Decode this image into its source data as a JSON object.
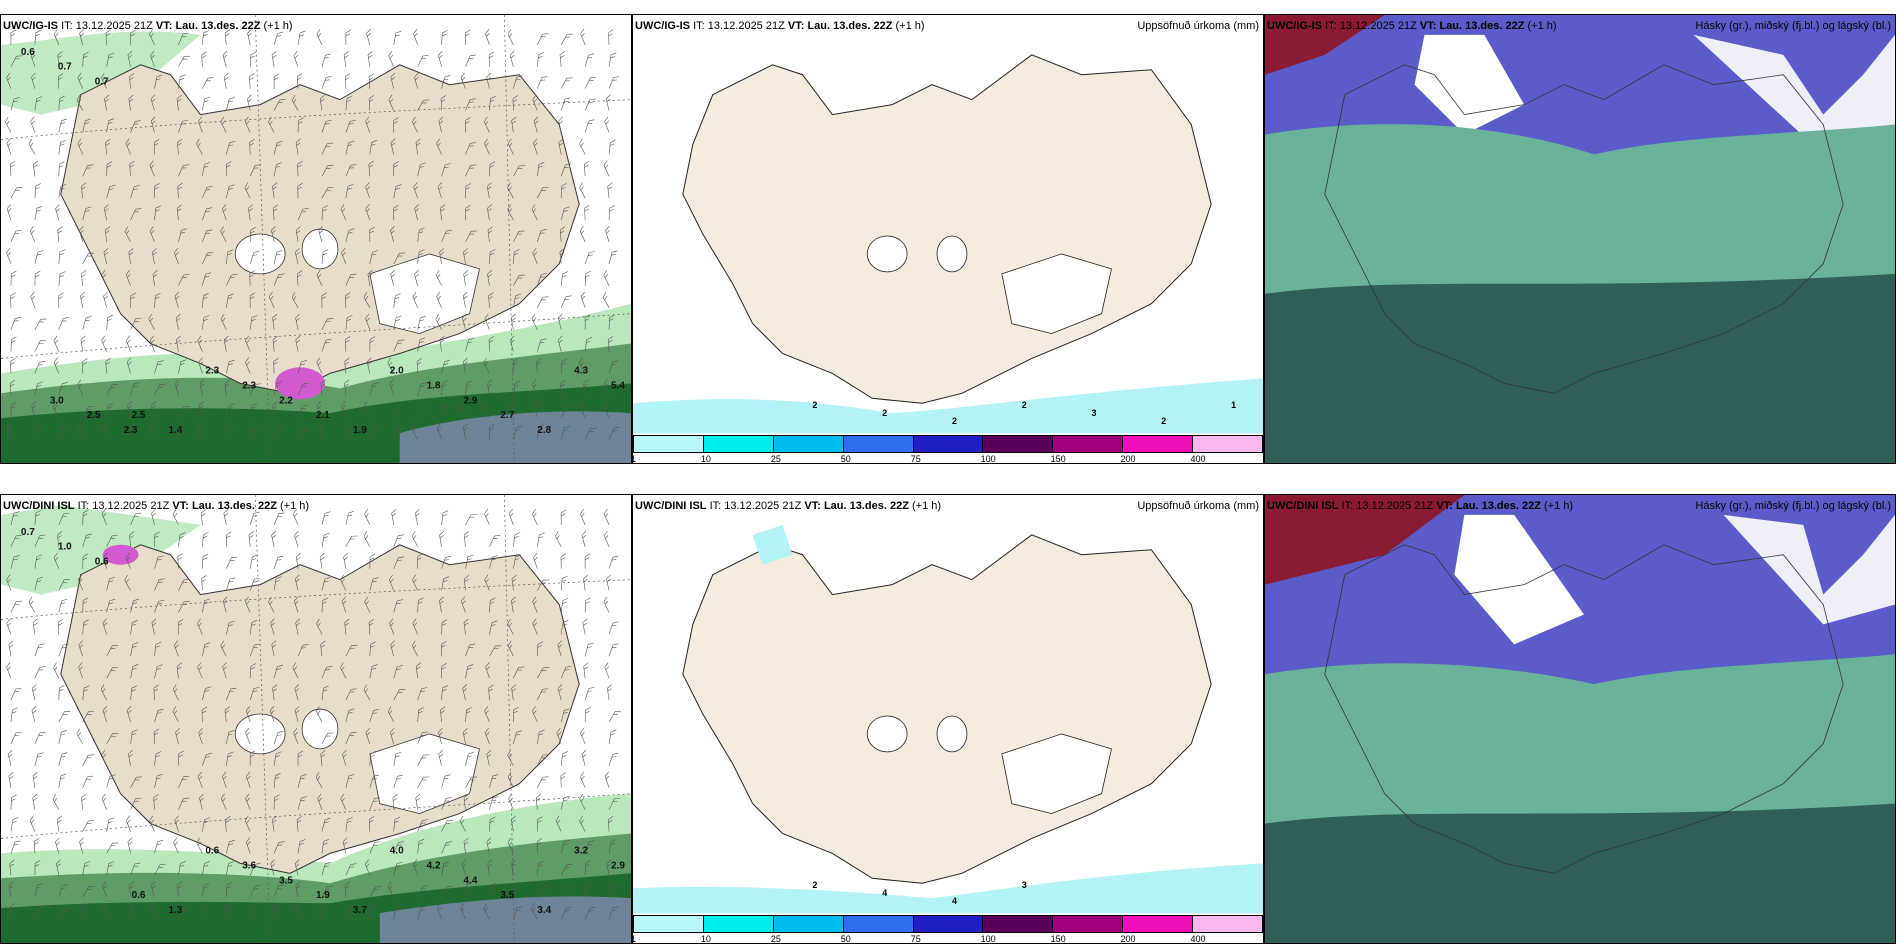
{
  "rows": [
    {
      "model": "UWC/IG-IS",
      "it_label": "IT:",
      "it_value": "13.12.2025 21Z",
      "vt_label": "VT:",
      "vt_value": "Lau. 13.des. 22Z",
      "lead": "(+1 h)",
      "precip_title": "Uppsöfnuð úrkoma (mm)",
      "cloud_title": "Hásky (gr.), miðský (fj.bl.) og lágský (bl.)",
      "wind_labels": [
        "0.6",
        "0.7",
        "0.7",
        "2.5",
        "1.4",
        "2.3",
        "2.3",
        "2.2",
        "2.1",
        "1.9",
        "2.0",
        "1.8",
        "2.9",
        "2.7",
        "2.8",
        "4.3",
        "5.4",
        "3.0",
        "2.5",
        "2.3"
      ],
      "precip_labels": [
        "2",
        "2",
        "2",
        "2",
        "3",
        "2",
        "1"
      ]
    },
    {
      "model": "UWC/DINI ISL",
      "it_label": "IT:",
      "it_value": "13.12.2025 21Z",
      "vt_label": "VT:",
      "vt_value": "Lau. 13.des. 22Z",
      "lead": "(+1 h)",
      "precip_title": "Uppsöfnuð úrkoma (mm)",
      "cloud_title": "Hásky (gr.), miðský (fj.bl.) og lágský (bl.)",
      "wind_labels": [
        "0.7",
        "1.0",
        "0.6",
        "0.6",
        "1.3",
        "0.6",
        "3.6",
        "3.5",
        "1.9",
        "3.7",
        "4.0",
        "4.2",
        "4.4",
        "3.5",
        "3.4",
        "3.2",
        "2.9"
      ],
      "precip_labels": [
        "2",
        "4",
        "4",
        "3"
      ]
    }
  ],
  "colorbar": {
    "colors": [
      "#b7f7f7",
      "#00ecec",
      "#00bcef",
      "#2f6fef",
      "#2020c0",
      "#5a005a",
      "#a00080",
      "#ee10b8",
      "#f7b8f0"
    ],
    "labels": [
      "1",
      "10",
      "25",
      "50",
      "75",
      "100",
      "150",
      "200",
      "400"
    ]
  },
  "colors": {
    "land": "#f5ebdf",
    "land_left": "#e8dccb",
    "sea_precip": "#b4f3f5",
    "green_dark": "#1f6b2d",
    "green_mid": "#5f9c66",
    "green_light": "#b9e8bb",
    "cloud_high": "#8a1b33",
    "cloud_mid": "#5b5cc9",
    "cloud_low": "#2f5f57",
    "cloud_lowmid": "#6ab29a"
  }
}
